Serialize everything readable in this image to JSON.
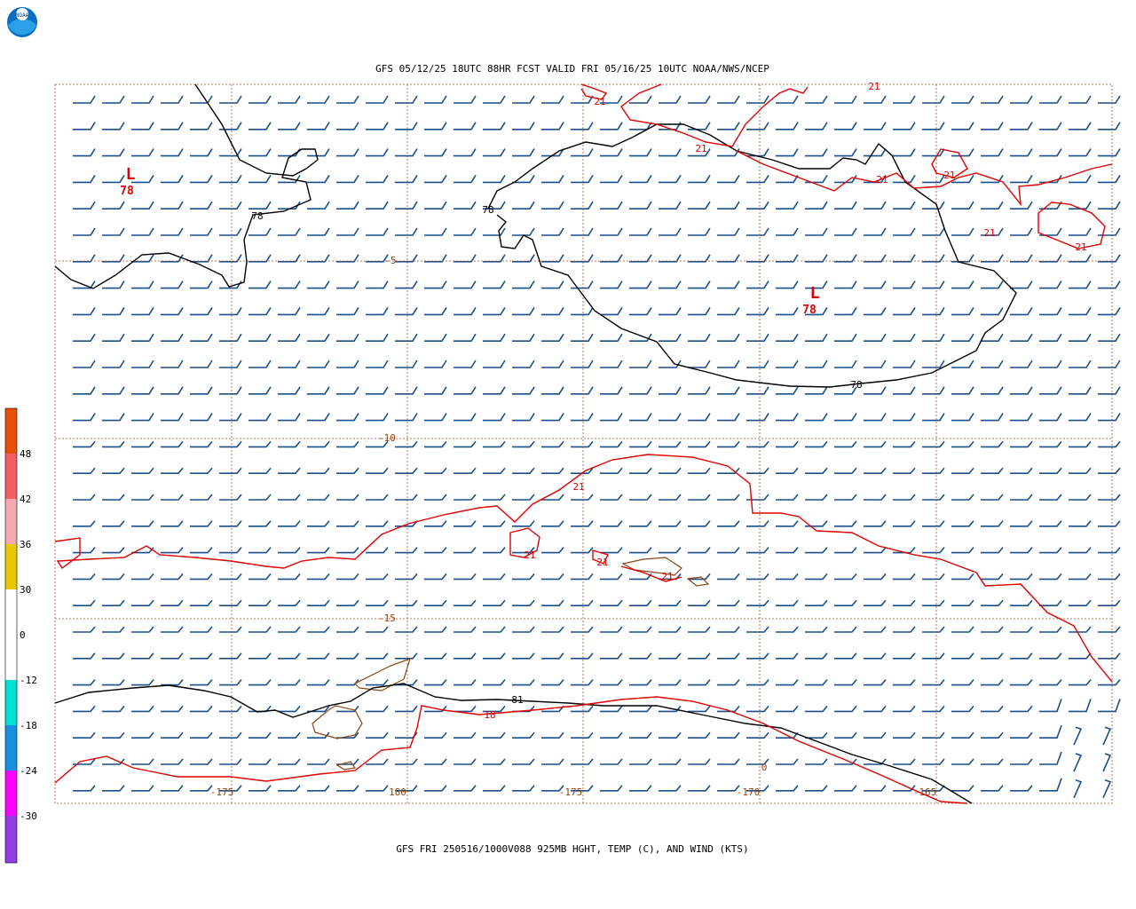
{
  "header": {
    "title": "GFS 05/12/25 18UTC 88HR FCST VALID FRI 05/16/25 10UTC NOAA/NWS/NCEP",
    "logo": "NOAA"
  },
  "footer": "GFS FRI 250516/1000V088 925MB HGHT, TEMP (C), AND WIND (KTS)",
  "colorbar": {
    "labels": [
      48,
      42,
      36,
      30,
      0,
      -12,
      -18,
      -24,
      -30
    ]
  },
  "latitude_labels": [
    -5,
    -10,
    -15
  ],
  "longitude_labels": [
    -175,
    180,
    -175,
    -170,
    -165
  ],
  "lows": [
    {
      "letter": "L",
      "value": 78
    },
    {
      "letter": "L",
      "value": 78
    }
  ],
  "height_labels": [
    78,
    78,
    78,
    81
  ],
  "temperature_labels": [
    21,
    21,
    21,
    21,
    21,
    21,
    21,
    21,
    21,
    21,
    21,
    18,
    0
  ]
}
